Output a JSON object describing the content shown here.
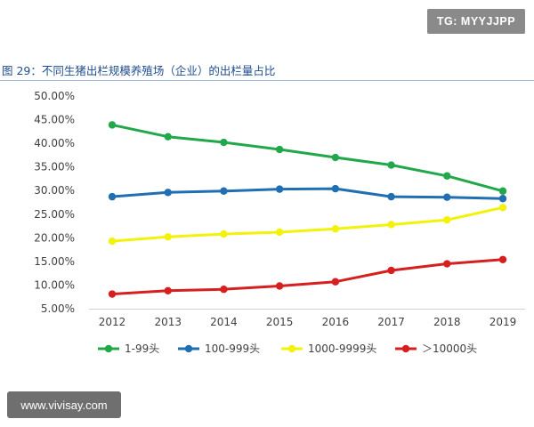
{
  "watermark_top": "TG: MYYJJPP",
  "watermark_bottom": "www.vivisay.com",
  "chart_data": {
    "type": "line",
    "title": "图 29：不同生猪出栏规模养殖场（企业）的出栏量占比",
    "xlabel": "",
    "ylabel": "",
    "categories": [
      "2012",
      "2013",
      "2014",
      "2015",
      "2016",
      "2017",
      "2018",
      "2019"
    ],
    "ylim": [
      5,
      50
    ],
    "yticks": [
      "5.00%",
      "10.00%",
      "15.00%",
      "20.00%",
      "25.00%",
      "30.00%",
      "35.00%",
      "40.00%",
      "45.00%",
      "50.00%"
    ],
    "grid": false,
    "legend_position": "bottom",
    "series": [
      {
        "name": "1-99头",
        "color": "#22a84a",
        "values": [
          43.9,
          41.4,
          40.2,
          38.7,
          37.0,
          35.4,
          33.1,
          29.9
        ]
      },
      {
        "name": "100-999头",
        "color": "#1f6fb2",
        "values": [
          28.7,
          29.6,
          29.9,
          30.3,
          30.4,
          28.7,
          28.6,
          28.3
        ]
      },
      {
        "name": "1000-9999头",
        "color": "#f2f20a",
        "values": [
          19.3,
          20.2,
          20.8,
          21.2,
          21.9,
          22.8,
          23.8,
          26.4
        ]
      },
      {
        "name": "＞10000头",
        "color": "#d61f1f",
        "values": [
          8.1,
          8.8,
          9.1,
          9.8,
          10.7,
          13.1,
          14.5,
          15.4
        ]
      }
    ]
  }
}
